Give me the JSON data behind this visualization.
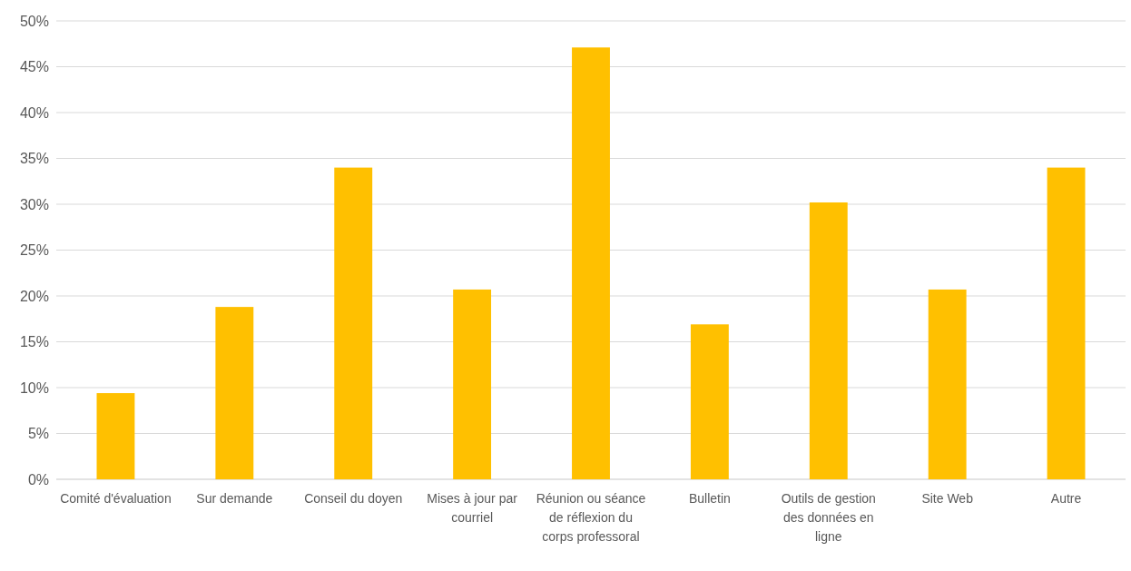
{
  "chart_data": {
    "type": "bar",
    "categories": [
      "Comité d'évaluation",
      "Sur demande",
      "Conseil du doyen",
      "Mises à jour par courriel",
      "Réunion ou séance de réflexion du corps professoral",
      "Bulletin",
      "Outils de gestion des données en ligne",
      "Site Web",
      "Autre"
    ],
    "values": [
      9.4,
      18.8,
      34.0,
      20.7,
      47.1,
      16.9,
      30.2,
      20.7,
      34.0
    ],
    "color": "#ffc000",
    "ylim": [
      0,
      50
    ],
    "yticks": [
      {
        "value": 0,
        "label": "0%"
      },
      {
        "value": 5,
        "label": "5%"
      },
      {
        "value": 10,
        "label": "10%"
      },
      {
        "value": 15,
        "label": "15%"
      },
      {
        "value": 20,
        "label": "20%"
      },
      {
        "value": 25,
        "label": "25%"
      },
      {
        "value": 30,
        "label": "30%"
      },
      {
        "value": 35,
        "label": "35%"
      },
      {
        "value": 40,
        "label": "40%"
      },
      {
        "value": 45,
        "label": "45%"
      },
      {
        "value": 50,
        "label": "50%"
      }
    ],
    "grid": "y"
  }
}
